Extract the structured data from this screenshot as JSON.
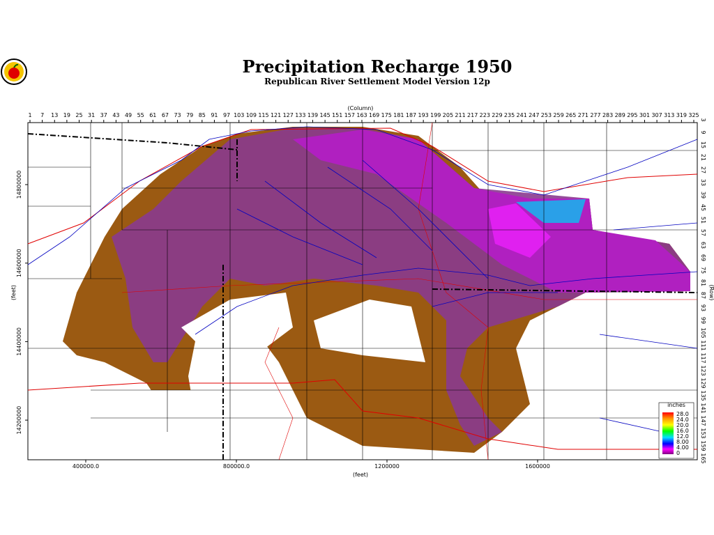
{
  "header": {
    "title": "Precipitation Recharge 1950",
    "subtitle": "Republican River Settlement Model Version 12p"
  },
  "map": {
    "column_label": "(Column)",
    "columns": [
      1,
      7,
      13,
      19,
      25,
      31,
      37,
      43,
      49,
      55,
      61,
      67,
      73,
      79,
      85,
      91,
      97,
      103,
      109,
      115,
      121,
      127,
      133,
      139,
      145,
      151,
      157,
      163,
      169,
      175,
      181,
      187,
      193,
      199,
      205,
      211,
      217,
      223,
      229,
      235,
      241,
      247,
      253,
      259,
      265,
      271,
      277,
      283,
      289,
      295,
      301,
      307,
      313,
      319,
      325
    ],
    "row_label": "(Row)",
    "rows": [
      3,
      9,
      15,
      21,
      27,
      33,
      39,
      45,
      51,
      57,
      63,
      69,
      75,
      81,
      87,
      93,
      99,
      105,
      111,
      117,
      123,
      129,
      135,
      141,
      147,
      153,
      159,
      165
    ],
    "x_label": "(feet)",
    "xticks": [
      {
        "value": 400000,
        "label": "400000.0"
      },
      {
        "value": 800000,
        "label": "800000.0"
      },
      1200000,
      1600000
    ],
    "y_label": "(feet)",
    "yticks": [
      14800000,
      14600000,
      14400000,
      14200000
    ],
    "legend": {
      "title": "inches",
      "labels": [
        "28.0",
        "24.0",
        "20.0",
        "16.0",
        "12.0",
        "8.00",
        "4.00",
        "0"
      ]
    }
  }
}
